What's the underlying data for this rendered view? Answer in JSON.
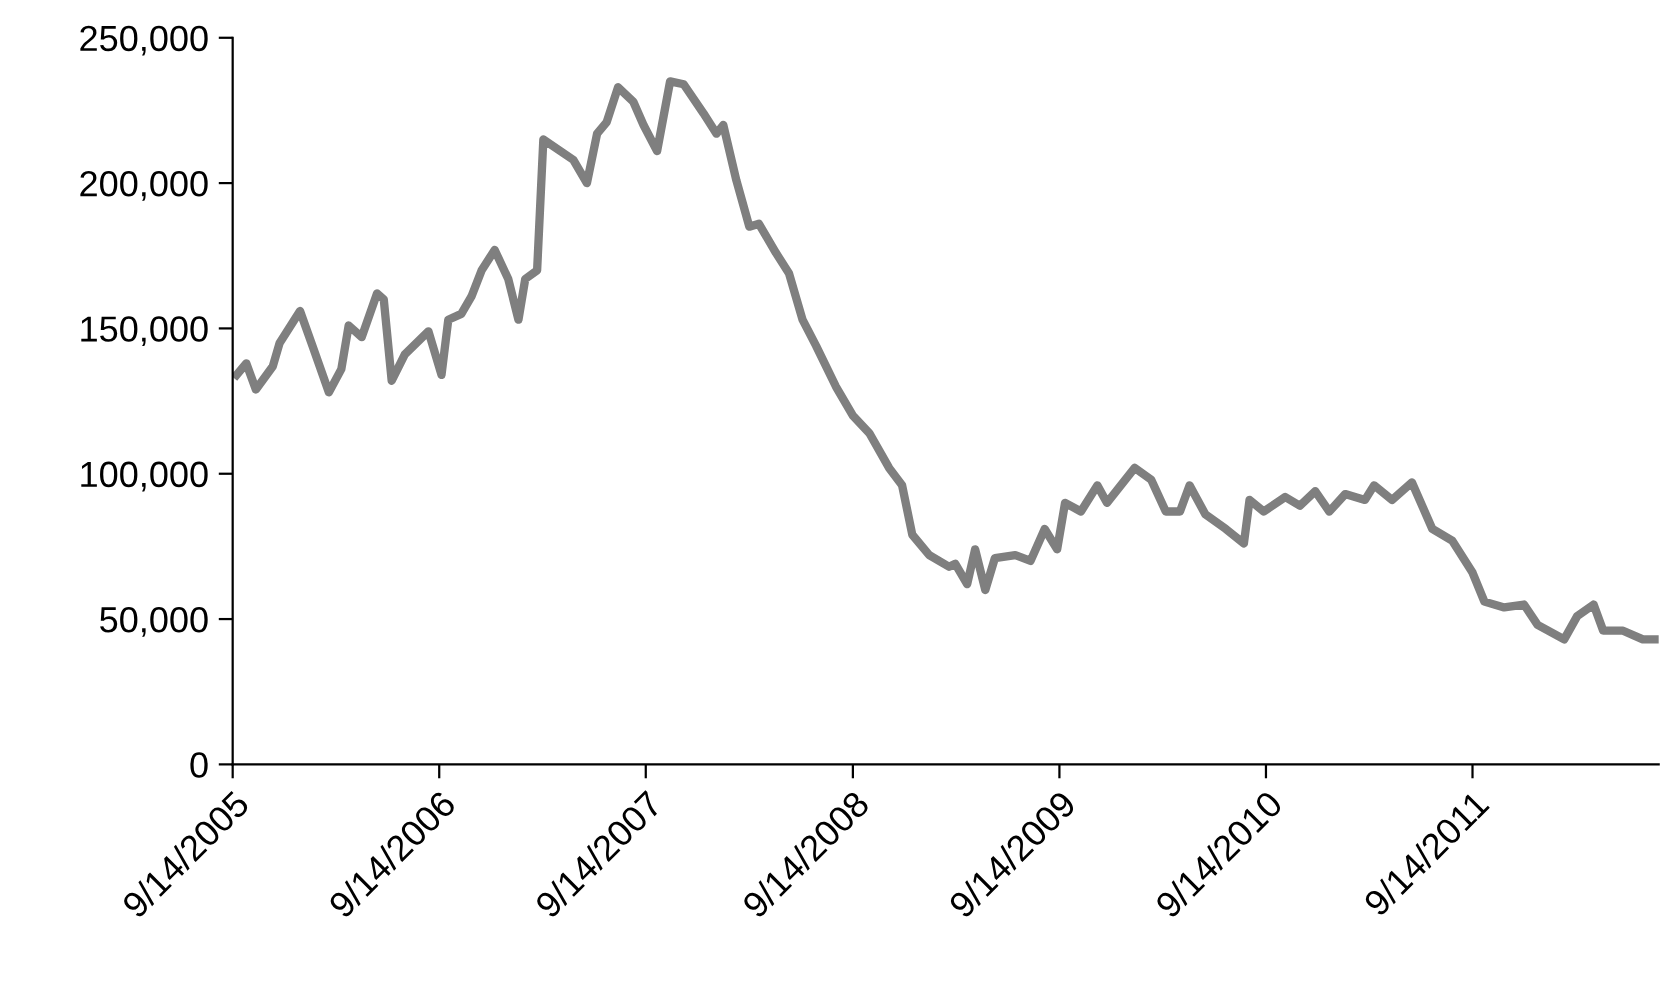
{
  "chart_data": {
    "type": "line",
    "x": [
      "2005-09-21",
      "2005-10-08",
      "2005-10-25",
      "2005-11-24",
      "2005-12-06",
      "2006-01-11",
      "2006-02-02",
      "2006-03-03",
      "2006-03-25",
      "2006-04-07",
      "2006-04-30",
      "2006-05-27",
      "2006-06-08",
      "2006-06-22",
      "2006-07-15",
      "2006-08-26",
      "2006-09-18",
      "2006-09-30",
      "2006-10-23",
      "2006-11-10",
      "2006-11-28",
      "2006-12-21",
      "2007-01-14",
      "2007-02-01",
      "2007-02-13",
      "2007-03-06",
      "2007-03-17",
      "2007-05-09",
      "2007-06-02",
      "2007-06-20",
      "2007-07-07",
      "2007-07-27",
      "2007-08-23",
      "2007-09-10",
      "2007-10-04",
      "2007-10-27",
      "2007-11-20",
      "2007-12-25",
      "2008-01-17",
      "2008-01-29",
      "2008-02-21",
      "2008-03-15",
      "2008-04-01",
      "2008-05-01",
      "2008-05-24",
      "2008-06-17",
      "2008-07-11",
      "2008-08-15",
      "2008-09-14",
      "2008-10-13",
      "2008-11-17",
      "2008-12-10",
      "2008-12-28",
      "2009-01-27",
      "2009-03-03",
      "2009-03-14",
      "2009-04-04",
      "2009-04-18",
      "2009-05-06",
      "2009-05-23",
      "2009-06-28",
      "2009-07-25",
      "2009-08-19",
      "2009-09-10",
      "2009-09-24",
      "2009-10-22",
      "2009-11-20",
      "2009-12-07",
      "2010-01-25",
      "2010-02-23",
      "2010-03-21",
      "2010-04-15",
      "2010-05-02",
      "2010-05-30",
      "2010-07-05",
      "2010-08-06",
      "2010-08-16",
      "2010-09-10",
      "2010-10-18",
      "2010-11-13",
      "2010-12-10",
      "2011-01-04",
      "2011-02-01",
      "2011-03-08",
      "2011-03-24",
      "2011-04-25",
      "2011-05-30",
      "2011-07-05",
      "2011-08-09",
      "2011-09-14",
      "2011-10-05",
      "2011-11-09",
      "2011-12-14",
      "2012-01-07",
      "2012-02-23",
      "2012-03-17",
      "2012-04-15",
      "2012-05-02",
      "2012-06-06",
      "2012-07-11",
      "2012-08-05"
    ],
    "series": [
      {
        "color": "#7f7f7f",
        "values": [
          134000,
          138000,
          129000,
          137000,
          145000,
          156000,
          144000,
          128000,
          136000,
          151000,
          147000,
          162000,
          160000,
          132000,
          141000,
          149000,
          134000,
          153000,
          155000,
          161000,
          170000,
          177000,
          167000,
          153000,
          167000,
          170000,
          215000,
          208000,
          200000,
          217000,
          221000,
          233000,
          228000,
          220000,
          211000,
          235000,
          234000,
          224000,
          217000,
          220000,
          201000,
          185000,
          186000,
          176000,
          169000,
          153000,
          144000,
          130000,
          120000,
          114000,
          102000,
          96000,
          79000,
          72000,
          68000,
          69000,
          62000,
          74000,
          60000,
          71000,
          72000,
          70000,
          81000,
          74000,
          90000,
          87000,
          96000,
          90000,
          102000,
          98000,
          87000,
          87000,
          96000,
          86000,
          81000,
          76000,
          91000,
          87000,
          92000,
          89000,
          94000,
          87000,
          93000,
          91000,
          96000,
          91000,
          97000,
          81000,
          77000,
          66000,
          56000,
          54000,
          55000,
          48000,
          43000,
          51000,
          55000,
          46000,
          46000,
          43000,
          43000
        ]
      }
    ],
    "xlim": [
      "2005-09-14",
      "2012-08-08"
    ],
    "xticks": [
      {
        "value": "2005-09-14",
        "label": "9/14/2005"
      },
      {
        "value": "2006-09-14",
        "label": "9/14/2006"
      },
      {
        "value": "2007-09-14",
        "label": "9/14/2007"
      },
      {
        "value": "2008-09-14",
        "label": "9/14/2008"
      },
      {
        "value": "2009-09-14",
        "label": "9/14/2009"
      },
      {
        "value": "2010-09-14",
        "label": "9/14/2010"
      },
      {
        "value": "2011-09-14",
        "label": "9/14/2011"
      }
    ],
    "ylim": [
      0,
      250000
    ],
    "yticks": [
      {
        "value": 0,
        "label": "0"
      },
      {
        "value": 50000,
        "label": "50,000"
      },
      {
        "value": 100000,
        "label": "100,000"
      },
      {
        "value": 150000,
        "label": "150,000"
      },
      {
        "value": 200000,
        "label": "200,000"
      },
      {
        "value": 250000,
        "label": "250,000"
      }
    ],
    "grid": false,
    "legend": false,
    "marker": "none",
    "line_style": "solid"
  }
}
